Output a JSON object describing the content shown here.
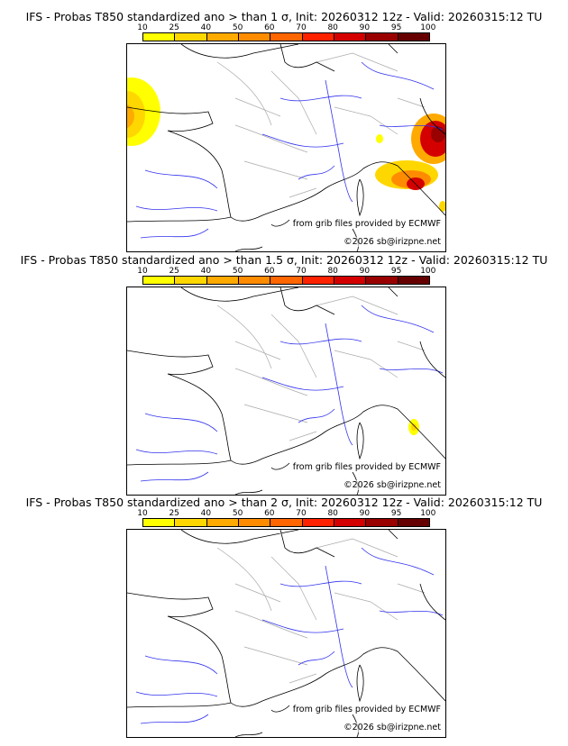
{
  "panels": [
    {
      "title": "IFS - Probas T850  standardized ano > than 1 σ, Init: 20260312 12z - Valid: 20260315:12 TU",
      "threshold": "1"
    },
    {
      "title": "IFS - Probas T850  standardized ano > than 1.5 σ, Init: 20260312 12z - Valid: 20260315:12 TU",
      "threshold": "1.5"
    },
    {
      "title": "IFS - Probas T850  standardized ano > than 2 σ, Init: 20260312 12z - Valid: 20260315:12 TU",
      "threshold": "2"
    }
  ],
  "colorbar": {
    "ticks": [
      "10",
      "25",
      "40",
      "50",
      "60",
      "70",
      "80",
      "90",
      "95",
      "100"
    ],
    "colors": [
      "#ffff00",
      "#ffd700",
      "#ffaa00",
      "#ff8c00",
      "#ff6600",
      "#ff2200",
      "#d40000",
      "#990000",
      "#660000"
    ]
  },
  "credits": {
    "source": "from grib files provided by ECMWF",
    "copyright": "©2026 sb@irizpne.net"
  }
}
